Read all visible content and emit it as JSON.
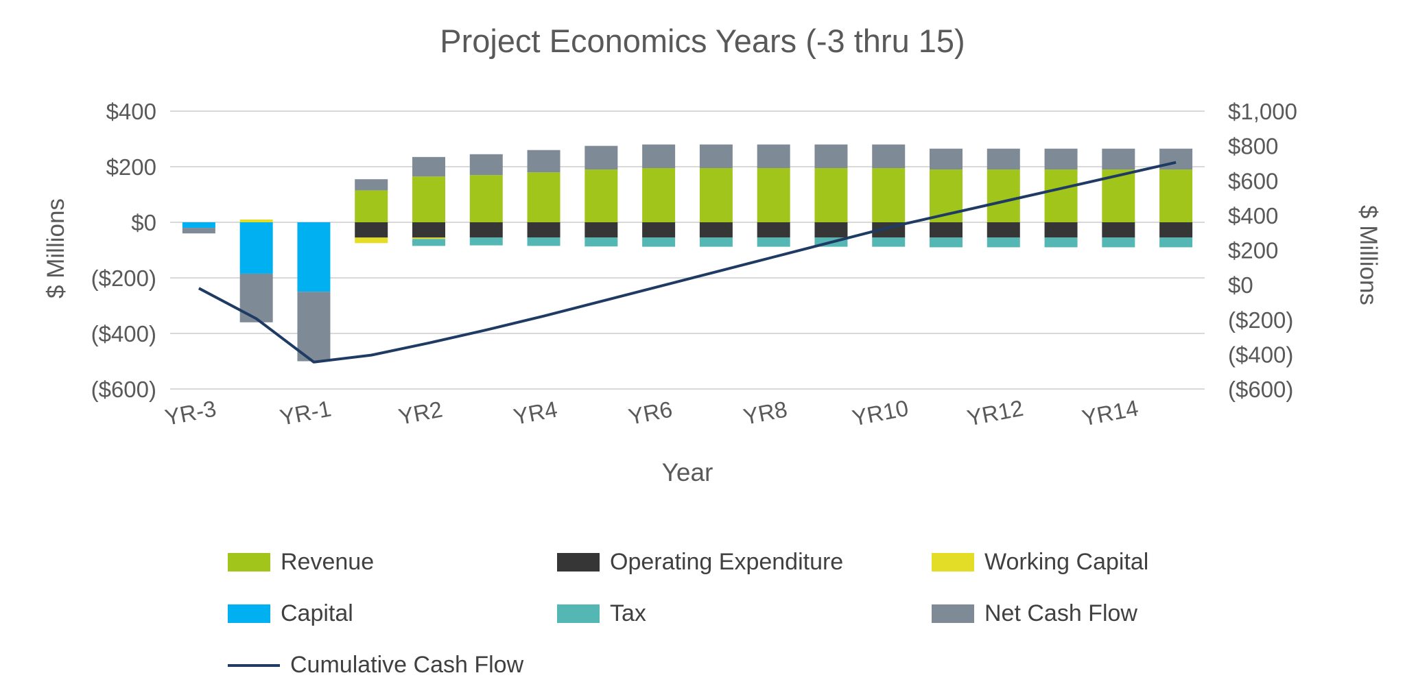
{
  "chart_data": {
    "type": "bar",
    "title": "Project Economics Years (-3 thru 15)",
    "xlabel": "Year",
    "ylabel_left": "$ Millions",
    "ylabel_right": "$ Millions",
    "grid": true,
    "legend_position": "bottom",
    "left_axis": {
      "min": -600,
      "max": 400,
      "tick_values": [
        400,
        200,
        0,
        -200,
        -400,
        -600
      ],
      "tick_labels": [
        "$400",
        "$200",
        "$0",
        "($200)",
        "($400)",
        "($600)"
      ]
    },
    "right_axis": {
      "min": -600,
      "max": 1000,
      "tick_values": [
        1000,
        800,
        600,
        400,
        200,
        0,
        -200,
        -400,
        -600
      ],
      "tick_labels": [
        "$1,000",
        "$800",
        "$600",
        "$400",
        "$200",
        "$0",
        "($200)",
        "($400)",
        "($600)"
      ]
    },
    "categories": [
      "YR-3",
      "YR-2",
      "YR-1",
      "YR1",
      "YR2",
      "YR3",
      "YR4",
      "YR5",
      "YR6",
      "YR7",
      "YR8",
      "YR9",
      "YR10",
      "YR11",
      "YR12",
      "YR13",
      "YR14",
      "YR15"
    ],
    "x_tick_labels_shown": [
      "YR-3",
      "YR-1",
      "YR2",
      "YR4",
      "YR6",
      "YR8",
      "YR10",
      "YR12",
      "YR14"
    ],
    "series": [
      {
        "name": "Revenue",
        "color": "#a2c51c",
        "values": [
          0,
          0,
          0,
          115,
          165,
          170,
          180,
          190,
          195,
          195,
          195,
          195,
          195,
          190,
          190,
          190,
          190,
          190
        ]
      },
      {
        "name": "Operating Expenditure",
        "color": "#363636",
        "values": [
          0,
          0,
          0,
          -55,
          -55,
          -55,
          -55,
          -55,
          -55,
          -55,
          -55,
          -55,
          -55,
          -55,
          -55,
          -55,
          -55,
          -55
        ]
      },
      {
        "name": "Working Capital",
        "color": "#e3dd28",
        "values": [
          0,
          10,
          0,
          -20,
          -5,
          0,
          0,
          0,
          0,
          0,
          0,
          0,
          0,
          0,
          0,
          0,
          0,
          0
        ]
      },
      {
        "name": "Capital",
        "color": "#00b0f0",
        "values": [
          -20,
          -185,
          -250,
          0,
          0,
          0,
          0,
          0,
          0,
          0,
          0,
          0,
          0,
          0,
          0,
          0,
          0,
          0
        ]
      },
      {
        "name": "Tax",
        "color": "#55b7b4",
        "values": [
          0,
          0,
          0,
          0,
          -25,
          -28,
          -30,
          -32,
          -33,
          -33,
          -33,
          -33,
          -33,
          -35,
          -35,
          -35,
          -35,
          -35
        ]
      },
      {
        "name": "Net Cash Flow",
        "color": "#7e8b97",
        "values": [
          -20,
          -175,
          -250,
          40,
          70,
          75,
          80,
          85,
          85,
          85,
          85,
          85,
          85,
          75,
          75,
          75,
          75,
          75
        ]
      }
    ],
    "line_series": {
      "name": "Cumulative Cash Flow",
      "color": "#1f3b63",
      "axis": "right",
      "values": [
        -20,
        -195,
        -445,
        -405,
        -335,
        -260,
        -180,
        -95,
        -10,
        75,
        160,
        245,
        330,
        405,
        480,
        555,
        630,
        705
      ]
    },
    "legend": [
      {
        "label": "Revenue",
        "color": "#a2c51c",
        "type": "box"
      },
      {
        "label": "Operating Expenditure",
        "color": "#363636",
        "type": "box"
      },
      {
        "label": "Working Capital",
        "color": "#e3dd28",
        "type": "box"
      },
      {
        "label": "Capital",
        "color": "#00b0f0",
        "type": "box"
      },
      {
        "label": "Tax",
        "color": "#55b7b4",
        "type": "box"
      },
      {
        "label": "Net Cash Flow",
        "color": "#7e8b97",
        "type": "box"
      },
      {
        "label": "Cumulative Cash Flow",
        "color": "#1f3b63",
        "type": "line"
      }
    ],
    "colors": {
      "gridline": "#d9d9d9",
      "axis_text": "#595959",
      "legend_text": "#404040",
      "background": "#ffffff"
    }
  }
}
